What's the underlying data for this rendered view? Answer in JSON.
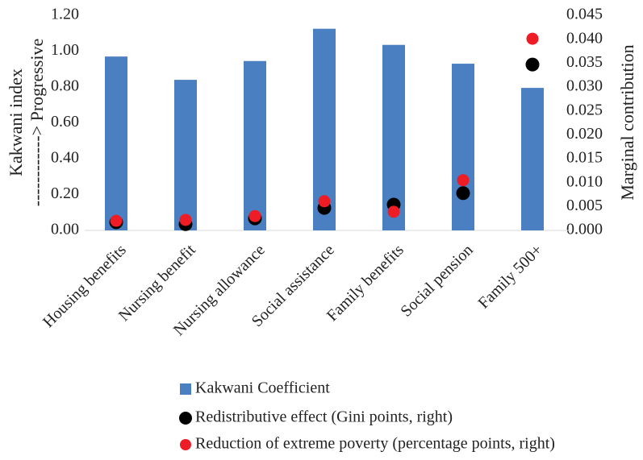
{
  "chart_data": {
    "type": "bar",
    "categories": [
      "Housing benefits",
      "Nursing benefit",
      "Nursing allowance",
      "Social assistance",
      "Family benefits",
      "Social pension",
      "Family 500+"
    ],
    "ylabel": [
      "Kakwani index",
      "------------> Progressive"
    ],
    "y2label": "Marginal contribution",
    "ylim": [
      0,
      1.2
    ],
    "yticks": [
      {
        "value": 0,
        "label": "0.00"
      },
      {
        "value": 0.2,
        "label": "0.20"
      },
      {
        "value": 0.4,
        "label": "0.40"
      },
      {
        "value": 0.6,
        "label": "0.60"
      },
      {
        "value": 0.8,
        "label": "0.80"
      },
      {
        "value": 1.0,
        "label": "1.00"
      },
      {
        "value": 1.2,
        "label": "1.20"
      }
    ],
    "y2lim": [
      0,
      0.045
    ],
    "y2ticks": [
      {
        "value": 0,
        "label": "0.000"
      },
      {
        "value": 0.005,
        "label": "0.005"
      },
      {
        "value": 0.01,
        "label": "0.010"
      },
      {
        "value": 0.015,
        "label": "0.015"
      },
      {
        "value": 0.02,
        "label": "0.020"
      },
      {
        "value": 0.025,
        "label": "0.025"
      },
      {
        "value": 0.03,
        "label": "0.030"
      },
      {
        "value": 0.035,
        "label": "0.035"
      },
      {
        "value": 0.04,
        "label": "0.040"
      },
      {
        "value": 0.045,
        "label": "0.045"
      }
    ],
    "series": [
      {
        "name": "Kakwani Coefficient",
        "type": "bar",
        "color": "#4a7fc1",
        "values": [
          0.97,
          0.84,
          0.945,
          1.125,
          1.035,
          0.93,
          0.795
        ]
      },
      {
        "name": "Redistributive effect (Gini points, right)",
        "type": "scatter",
        "axis": "y2",
        "color": "#000000",
        "values": [
          0.0017,
          0.0013,
          0.0025,
          0.0047,
          0.0054,
          0.0078,
          0.0347
        ]
      },
      {
        "name": "Reduction of extreme poverty (percentage points, right)",
        "type": "scatter",
        "axis": "y2",
        "color": "#ee1c25",
        "values": [
          0.002,
          0.0022,
          0.003,
          0.0061,
          0.0039,
          0.0105,
          0.0401
        ]
      }
    ]
  }
}
